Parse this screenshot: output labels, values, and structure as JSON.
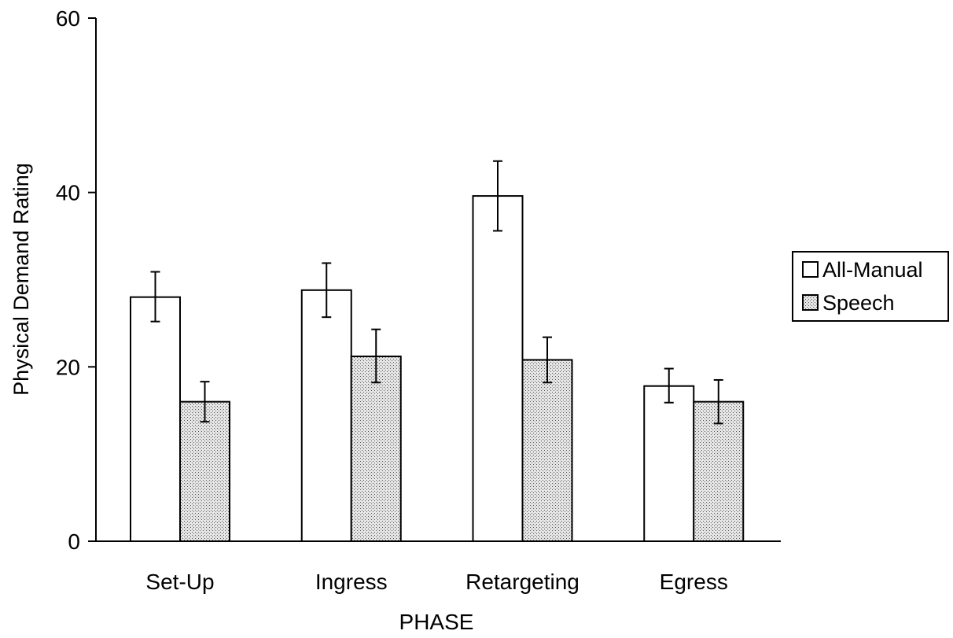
{
  "chart_data": {
    "type": "bar",
    "title": "",
    "xlabel": "PHASE",
    "ylabel": "Physical Demand Rating",
    "ylim": [
      0,
      60
    ],
    "yticks": [
      0,
      20,
      40,
      60
    ],
    "grid": false,
    "legend_position": "right",
    "categories": [
      "Set-Up",
      "Ingress",
      "Retargeting",
      "Egress"
    ],
    "series": [
      {
        "name": "All-Manual",
        "fill": "white",
        "values": [
          28.0,
          28.8,
          39.6,
          17.8
        ],
        "error_low": [
          25.2,
          25.7,
          35.6,
          15.9
        ],
        "error_high": [
          30.9,
          31.9,
          43.6,
          19.8
        ]
      },
      {
        "name": "Speech",
        "fill": "stippled",
        "values": [
          16.0,
          21.2,
          20.8,
          16.0
        ],
        "error_low": [
          13.7,
          18.2,
          18.2,
          13.5
        ],
        "error_high": [
          18.3,
          24.3,
          23.4,
          18.5
        ]
      }
    ]
  }
}
